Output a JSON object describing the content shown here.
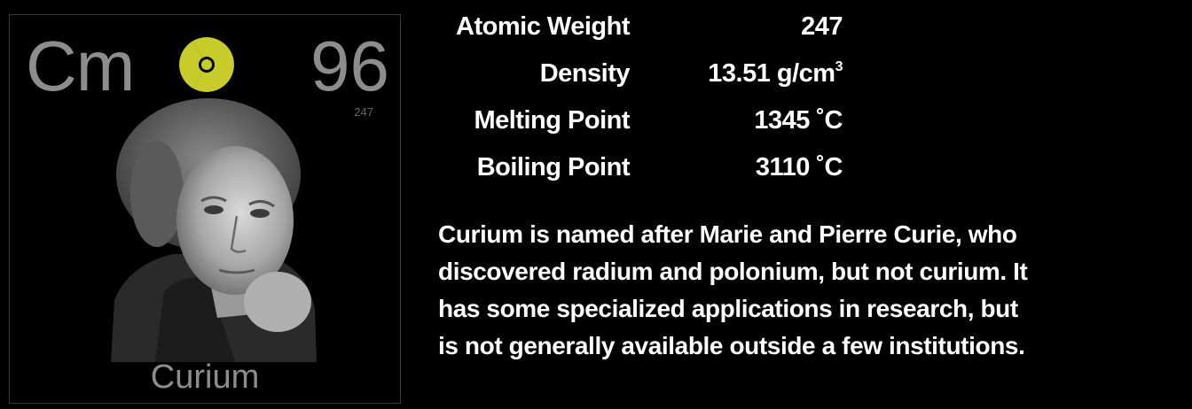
{
  "element": {
    "symbol": "Cm",
    "number": "96",
    "weight_small": "247",
    "name": "Curium",
    "hazard_icon": "radiation-icon",
    "hazard_color": "#c8cc2a"
  },
  "properties": [
    {
      "label": "Atomic Weight",
      "value": "247",
      "sup": ""
    },
    {
      "label": "Density",
      "value": "13.51 g/cm",
      "sup": "3"
    },
    {
      "label": "Melting Point",
      "value": "1345 ˚C",
      "sup": ""
    },
    {
      "label": "Boiling Point",
      "value": "3110 ˚C",
      "sup": ""
    }
  ],
  "description": [
    "Curium is named after Marie and Pierre Curie, who",
    "discovered radium and polonium, but not curium.  It",
    "has some specialized applications in research, but",
    "is not generally available outside a few institutions."
  ]
}
